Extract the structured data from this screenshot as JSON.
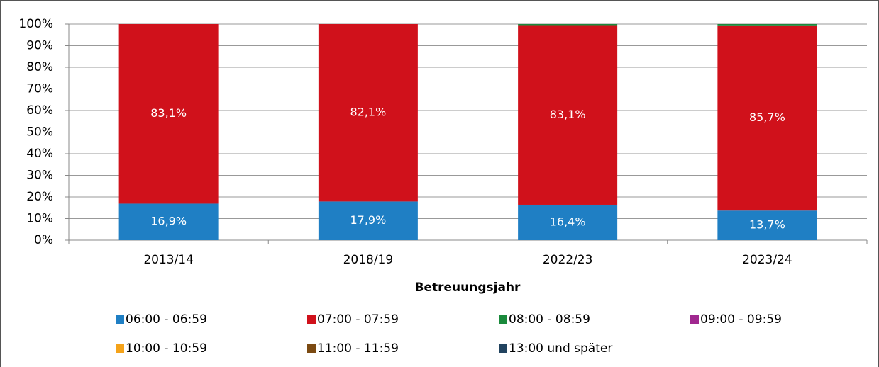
{
  "chart_data": {
    "type": "stacked_bar",
    "x_label": "Betreuungsjahr",
    "categories": [
      "2013/14",
      "2018/19",
      "2022/23",
      "2023/24"
    ],
    "series": [
      {
        "name": "06:00 - 06:59",
        "color": "#1f7fc4",
        "values": [
          16.9,
          17.9,
          16.4,
          13.7
        ],
        "value_labels": [
          "16,9%",
          "17,9%",
          "16,4%",
          "13,7%"
        ]
      },
      {
        "name": "07:00 - 07:59",
        "color": "#d0111b",
        "values": [
          83.1,
          82.1,
          83.1,
          85.7
        ],
        "value_labels": [
          "83,1%",
          "82,1%",
          "83,1%",
          "85,7%"
        ]
      },
      {
        "name": "08:00 - 08:59",
        "color": "#1a8a3c",
        "values": [
          0,
          0,
          0.5,
          0.6
        ]
      },
      {
        "name": "09:00 - 09:59",
        "color": "#a0288f",
        "values": [
          0,
          0,
          0,
          0
        ]
      },
      {
        "name": "10:00 - 10:59",
        "color": "#f5a31a",
        "values": [
          0,
          0,
          0,
          0
        ]
      },
      {
        "name": "11:00 - 11:59",
        "color": "#7b4a12",
        "values": [
          0,
          0,
          0,
          0
        ]
      },
      {
        "name": "13:00 und später",
        "color": "#21435f",
        "values": [
          0,
          0,
          0,
          0
        ]
      }
    ],
    "ylim": [
      0,
      100
    ],
    "yticks": [
      {
        "value": 0,
        "label": "0%"
      },
      {
        "value": 10,
        "label": "10%"
      },
      {
        "value": 20,
        "label": "20%"
      },
      {
        "value": 30,
        "label": "30%"
      },
      {
        "value": 40,
        "label": "40%"
      },
      {
        "value": 50,
        "label": "50%"
      },
      {
        "value": 60,
        "label": "60%"
      },
      {
        "value": 70,
        "label": "70%"
      },
      {
        "value": 80,
        "label": "80%"
      },
      {
        "value": 90,
        "label": "90%"
      },
      {
        "value": 100,
        "label": "100%"
      }
    ],
    "grid": true,
    "legend": "bottom"
  }
}
